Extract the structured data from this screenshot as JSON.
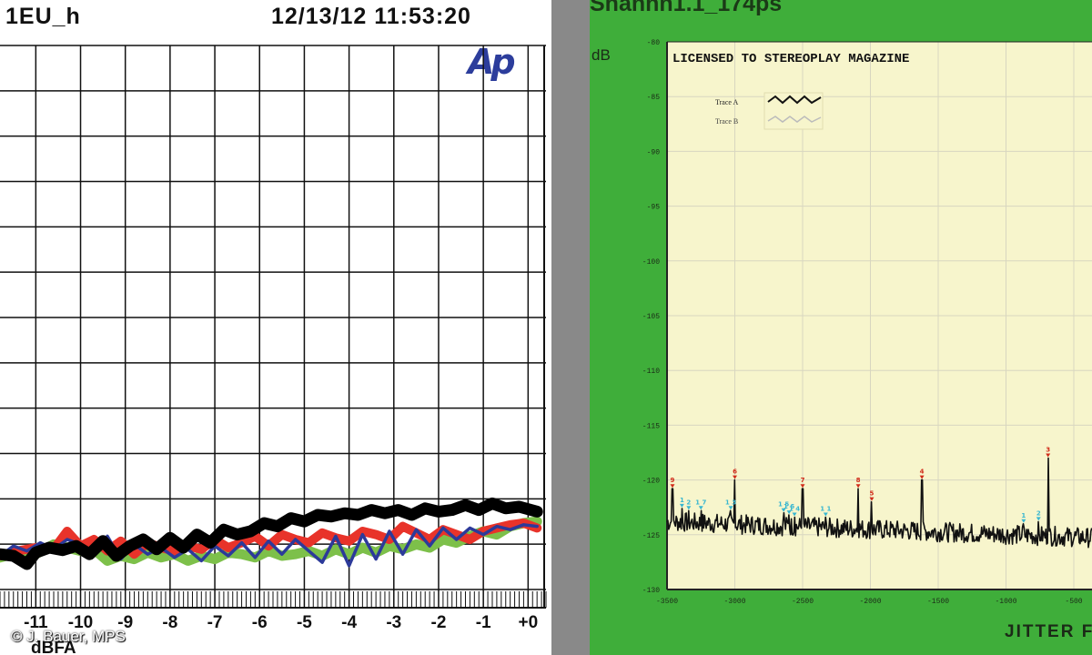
{
  "left_chart": {
    "header_title": "1EU_h",
    "header_datetime": "12/13/12 11:53:20",
    "logo_text": "Ap",
    "xlabel_fragment": "dBFA"
  },
  "right_chart": {
    "header_title": "Shannn1.1_174ps",
    "license_text": "LICENSED TO STEREOPLAY MAGAZINE",
    "y_unit": "dB",
    "xlabel": "JITTER F",
    "legend": [
      {
        "label": "Trace A",
        "color": "#111111"
      },
      {
        "label": "Trace B",
        "color": "#b8b8b8"
      }
    ]
  },
  "copyright": "© J. Bauer, MPS",
  "colors": {
    "panel_green": "#3fae3a",
    "plot_bg": "#f7f5cc",
    "trace_black": "#000000",
    "trace_red": "#e8332a",
    "trace_green": "#7dc04a",
    "trace_blue": "#2c3a9a",
    "marker_red": "#d02a18",
    "marker_cyan": "#37b6d0"
  },
  "chart_data": [
    {
      "type": "line",
      "title": "",
      "xlabel": "dBFA",
      "ylabel": "",
      "xlim": [
        -11.8,
        0.4
      ],
      "ticks_x": [
        "-11",
        "-10",
        "-9",
        "-8",
        "-7",
        "-6",
        "-5",
        "-4",
        "-3",
        "-2",
        "-1",
        "+0"
      ],
      "tick_values_x": [
        -11,
        -10,
        -9,
        -8,
        -7,
        -6,
        -5,
        -4,
        -3,
        -2,
        -1,
        0
      ],
      "grid": true,
      "series": [
        {
          "id": "black",
          "color": "#000000",
          "stroke": 13,
          "x": [
            -11.8,
            -11.5,
            -11.2,
            -11.0,
            -10.7,
            -10.4,
            -10.1,
            -9.8,
            -9.5,
            -9.2,
            -8.9,
            -8.6,
            -8.3,
            -8.0,
            -7.7,
            -7.4,
            -7.1,
            -6.8,
            -6.5,
            -6.2,
            -5.9,
            -5.6,
            -5.3,
            -5.0,
            -4.7,
            -4.4,
            -4.1,
            -3.8,
            -3.5,
            -3.2,
            -2.9,
            -2.6,
            -2.3,
            -2.0,
            -1.7,
            -1.4,
            -1.1,
            -0.8,
            -0.5,
            -0.2,
            0.2
          ],
          "y": [
            0.12,
            0.1,
            0.0,
            0.14,
            0.2,
            0.17,
            0.22,
            0.12,
            0.28,
            0.1,
            0.22,
            0.3,
            0.18,
            0.32,
            0.2,
            0.36,
            0.26,
            0.42,
            0.36,
            0.4,
            0.5,
            0.46,
            0.56,
            0.52,
            0.6,
            0.58,
            0.62,
            0.6,
            0.66,
            0.62,
            0.66,
            0.6,
            0.68,
            0.64,
            0.66,
            0.72,
            0.66,
            0.74,
            0.68,
            0.7,
            0.64
          ]
        },
        {
          "id": "red",
          "color": "#e8332a",
          "stroke": 10,
          "x": [
            -11.8,
            -11.4,
            -11.0,
            -10.6,
            -10.3,
            -10.0,
            -9.7,
            -9.4,
            -9.1,
            -8.8,
            -8.5,
            -8.2,
            -7.9,
            -7.6,
            -7.3,
            -7.0,
            -6.7,
            -6.4,
            -6.1,
            -5.8,
            -5.5,
            -5.2,
            -4.9,
            -4.6,
            -4.3,
            -4.0,
            -3.7,
            -3.4,
            -3.1,
            -2.8,
            -2.5,
            -2.2,
            -1.9,
            -1.6,
            -1.3,
            -1.0,
            -0.7,
            -0.4,
            -0.1,
            0.2
          ],
          "y": [
            0.1,
            0.16,
            0.2,
            0.18,
            0.4,
            0.22,
            0.3,
            0.16,
            0.28,
            0.12,
            0.26,
            0.2,
            0.16,
            0.22,
            0.18,
            0.3,
            0.2,
            0.26,
            0.34,
            0.22,
            0.36,
            0.3,
            0.26,
            0.38,
            0.32,
            0.28,
            0.4,
            0.36,
            0.3,
            0.46,
            0.38,
            0.3,
            0.42,
            0.36,
            0.3,
            0.4,
            0.44,
            0.48,
            0.5,
            0.44
          ]
        },
        {
          "id": "green",
          "color": "#7dc04a",
          "stroke": 11,
          "x": [
            -11.8,
            -11.4,
            -11.0,
            -10.6,
            -10.3,
            -10.0,
            -9.7,
            -9.4,
            -9.1,
            -8.8,
            -8.5,
            -8.2,
            -7.9,
            -7.6,
            -7.3,
            -7.0,
            -6.7,
            -6.4,
            -6.1,
            -5.8,
            -5.5,
            -5.2,
            -4.9,
            -4.6,
            -4.3,
            -4.0,
            -3.7,
            -3.4,
            -3.1,
            -2.8,
            -2.5,
            -2.2,
            -1.9,
            -1.6,
            -1.3,
            -1.0,
            -0.7,
            -0.4,
            -0.1,
            0.2
          ],
          "y": [
            0.08,
            0.14,
            0.12,
            0.24,
            0.2,
            0.16,
            0.18,
            0.04,
            0.1,
            0.06,
            0.14,
            0.08,
            0.12,
            0.04,
            0.1,
            0.06,
            0.14,
            0.12,
            0.08,
            0.16,
            0.1,
            0.12,
            0.16,
            0.1,
            0.18,
            0.12,
            0.2,
            0.14,
            0.22,
            0.18,
            0.24,
            0.2,
            0.3,
            0.26,
            0.34,
            0.4,
            0.36,
            0.46,
            0.5,
            0.52
          ]
        },
        {
          "id": "blue",
          "color": "#2c3a9a",
          "stroke": 3.5,
          "x": [
            -11.8,
            -11.5,
            -11.2,
            -10.9,
            -10.6,
            -10.3,
            -10.0,
            -9.7,
            -9.4,
            -9.1,
            -8.8,
            -8.5,
            -8.2,
            -7.9,
            -7.6,
            -7.3,
            -7.0,
            -6.7,
            -6.4,
            -6.1,
            -5.8,
            -5.5,
            -5.2,
            -4.9,
            -4.6,
            -4.3,
            -4.0,
            -3.7,
            -3.4,
            -3.1,
            -2.8,
            -2.5,
            -2.2,
            -1.9,
            -1.6,
            -1.3,
            -1.0,
            -0.7,
            -0.4,
            -0.1,
            0.2
          ],
          "y": [
            0.1,
            0.22,
            0.16,
            0.26,
            0.18,
            0.3,
            0.24,
            0.12,
            0.34,
            0.06,
            0.24,
            0.12,
            0.2,
            0.08,
            0.18,
            0.04,
            0.22,
            0.1,
            0.26,
            0.08,
            0.28,
            0.12,
            0.3,
            0.16,
            0.02,
            0.34,
            -0.02,
            0.36,
            0.06,
            0.4,
            0.12,
            0.42,
            0.22,
            0.44,
            0.3,
            0.44,
            0.36,
            0.46,
            0.42,
            0.48,
            0.46
          ]
        }
      ]
    },
    {
      "type": "line",
      "title": "LICENSED TO STEREOPLAY MAGAZINE",
      "xlabel": "JITTER F",
      "ylabel": "dB",
      "xlim": [
        -3500,
        -300
      ],
      "ylim": [
        -130,
        -80
      ],
      "yticks": [
        "-80",
        "-85",
        "-90",
        "-95",
        "-100",
        "-105",
        "-110",
        "-115",
        "-120",
        "-125",
        "-130"
      ],
      "ytick_values": [
        -80,
        -85,
        -90,
        -95,
        -100,
        -105,
        -110,
        -115,
        -120,
        -125,
        -130
      ],
      "xticks": [
        "-3500",
        "-3000",
        "-2500",
        "-2000",
        "-1500",
        "-1000",
        "-500"
      ],
      "xtick_values": [
        -3500,
        -3000,
        -2500,
        -2000,
        -1500,
        -1000,
        -500
      ],
      "grid": true,
      "series": [
        {
          "name": "Trace A",
          "color": "#111111",
          "baseline_start": -123.8,
          "baseline_end": -125.3,
          "peaks": [
            {
              "x": -3460,
              "y": -120.8,
              "label": "9",
              "color": "#d02a18"
            },
            {
              "x": -3390,
              "y": -122.6,
              "label": "1",
              "color": "#37b6d0"
            },
            {
              "x": -3340,
              "y": -122.8,
              "label": "2",
              "color": "#37b6d0"
            },
            {
              "x": -3250,
              "y": -122.8,
              "label": "1 7",
              "color": "#37b6d0"
            },
            {
              "x": -3030,
              "y": -122.8,
              "label": "1 3",
              "color": "#37b6d0"
            },
            {
              "x": -3000,
              "y": -120.0,
              "label": "6",
              "color": "#d02a18"
            },
            {
              "x": -2640,
              "y": -123.0,
              "label": "1 5",
              "color": "#37b6d0"
            },
            {
              "x": -2600,
              "y": -123.2,
              "label": "1 6",
              "color": "#37b6d0"
            },
            {
              "x": -2560,
              "y": -123.4,
              "label": "1 4",
              "color": "#37b6d0"
            },
            {
              "x": -2500,
              "y": -120.8,
              "label": "7",
              "color": "#d02a18"
            },
            {
              "x": -2330,
              "y": -123.4,
              "label": "1 1",
              "color": "#37b6d0"
            },
            {
              "x": -2090,
              "y": -120.8,
              "label": "8",
              "color": "#d02a18"
            },
            {
              "x": -1990,
              "y": -122.0,
              "label": "5",
              "color": "#d02a18"
            },
            {
              "x": -1620,
              "y": -120.0,
              "label": "4",
              "color": "#d02a18"
            },
            {
              "x": -870,
              "y": -124.0,
              "label": "1",
              "color": "#37b6d0"
            },
            {
              "x": -760,
              "y": -123.8,
              "label": "2",
              "color": "#37b6d0"
            },
            {
              "x": -690,
              "y": -118.0,
              "label": "3",
              "color": "#d02a18"
            }
          ]
        }
      ]
    }
  ]
}
